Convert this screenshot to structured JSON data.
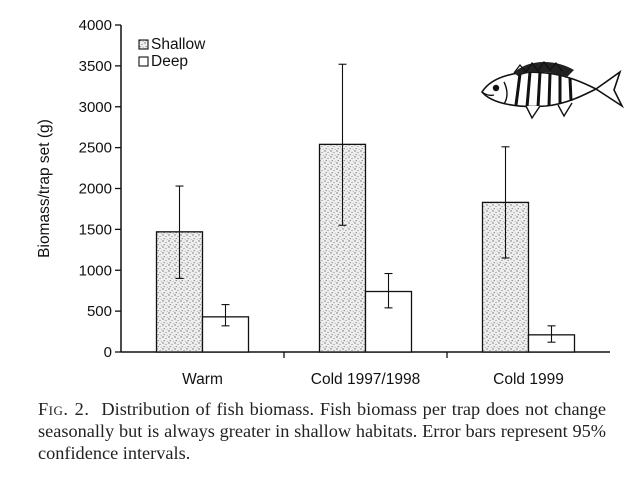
{
  "chart_data": {
    "type": "bar",
    "categories": [
      "Warm",
      "Cold 1997/1998",
      "Cold 1999"
    ],
    "series": [
      {
        "name": "Shallow",
        "values": [
          1470,
          2540,
          1830
        ],
        "ci_low": [
          900,
          1550,
          1150
        ],
        "ci_high": [
          2030,
          3520,
          2510
        ],
        "pattern": "stippled"
      },
      {
        "name": "Deep",
        "values": [
          430,
          740,
          210
        ],
        "ci_low": [
          320,
          540,
          120
        ],
        "ci_high": [
          580,
          960,
          320
        ],
        "pattern": "open"
      }
    ],
    "title": "",
    "xlabel": "",
    "ylabel": "Biomass/trap set (g)",
    "ylim": [
      0,
      4000
    ],
    "yticks": [
      "0",
      "500",
      "1000",
      "1500",
      "2000",
      "2500",
      "3000",
      "3500",
      "4000"
    ],
    "legend_position": "top-left",
    "grid": false,
    "colors": {
      "axis": "#111111",
      "stipple": "#7a7a7a",
      "bar_fill": "#eeeeee"
    }
  },
  "figure_icon": "fish-icon",
  "caption": {
    "label": "Fig. 2.",
    "text": "Distribution of fish biomass. Fish biomass per trap does not change seasonally but is always greater in shallow habitats. Error bars represent 95% confidence intervals."
  }
}
